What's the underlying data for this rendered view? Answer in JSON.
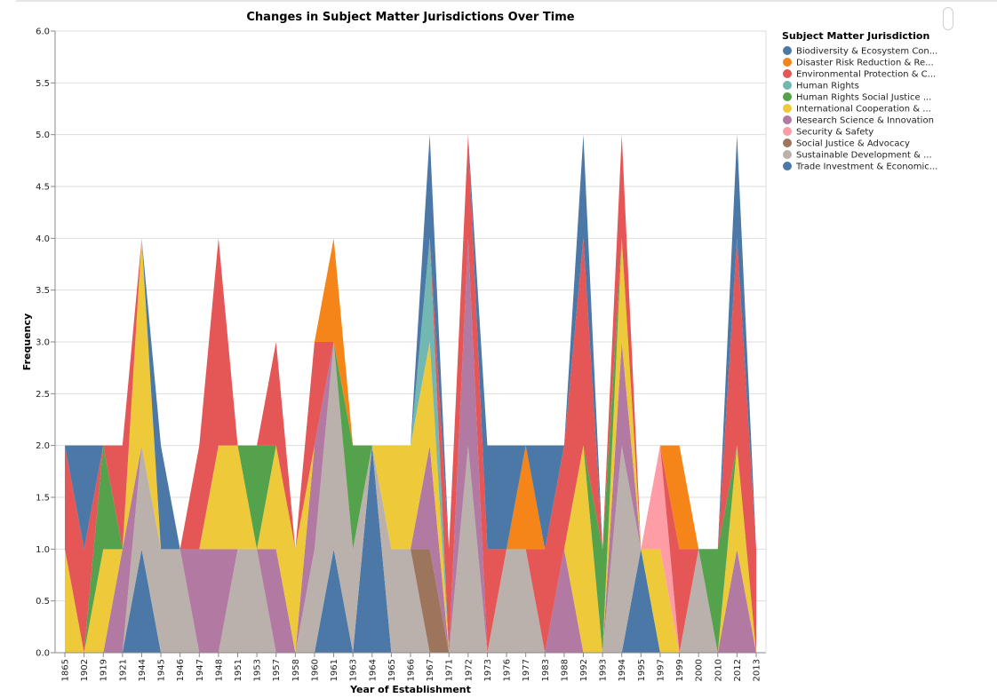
{
  "chart_data": {
    "type": "area",
    "stacked": true,
    "title": "Changes in Subject Matter Jurisdictions Over Time",
    "xlabel": "Year of Establishment",
    "ylabel": "Frequency",
    "ylim": [
      0,
      6
    ],
    "yticks": [
      "0.0",
      "0.5",
      "1.0",
      "1.5",
      "2.0",
      "2.5",
      "3.0",
      "3.5",
      "4.0",
      "4.5",
      "5.0",
      "5.5",
      "6.0"
    ],
    "grid": true,
    "legend_title": "Subject Matter Jurisdiction",
    "legend_position": "right",
    "categories": [
      "1865",
      "1902",
      "1919",
      "1921",
      "1944",
      "1945",
      "1946",
      "1947",
      "1948",
      "1951",
      "1953",
      "1957",
      "1958",
      "1960",
      "1961",
      "1963",
      "1964",
      "1965",
      "1966",
      "1967",
      "1971",
      "1972",
      "1973",
      "1976",
      "1977",
      "1983",
      "1988",
      "1992",
      "1993",
      "1994",
      "1995",
      "1997",
      "1999",
      "2000",
      "2010",
      "2012",
      "2013"
    ],
    "series": [
      {
        "name": "Biodiversity & Ecosystem Con...",
        "color": "#4c78a8",
        "values": [
          0,
          0,
          0,
          0,
          1,
          0,
          0,
          0,
          0,
          0,
          0,
          0,
          0,
          0,
          1,
          0,
          2,
          0,
          0,
          0,
          0,
          0,
          0,
          0,
          0,
          0,
          0,
          0,
          0,
          0,
          1,
          0,
          0,
          0,
          0,
          0,
          0
        ]
      },
      {
        "name": "Sustainable Development & ...",
        "color": "#bab0ac",
        "values": [
          0,
          0,
          0,
          0,
          1,
          1,
          1,
          0,
          0,
          1,
          1,
          0,
          0,
          1,
          2,
          1,
          0,
          1,
          1,
          0,
          0,
          2,
          0,
          1,
          1,
          0,
          0,
          0,
          0,
          2,
          0,
          0,
          0,
          1,
          0,
          0,
          0
        ]
      },
      {
        "name": "Social Justice & Advocacy",
        "color": "#9d755d",
        "values": [
          0,
          0,
          0,
          0,
          0,
          0,
          0,
          0,
          0,
          0,
          0,
          0,
          0,
          0,
          0,
          0,
          0,
          0,
          0,
          1,
          0,
          0,
          0,
          0,
          0,
          0,
          0,
          0,
          0,
          0,
          0,
          0,
          0,
          0,
          0,
          0,
          0
        ]
      },
      {
        "name": "Research Science & Innovation",
        "color": "#b279a2",
        "values": [
          0,
          0,
          0,
          1,
          0,
          0,
          0,
          1,
          1,
          0,
          0,
          1,
          0,
          1,
          0,
          0,
          0,
          0,
          0,
          1,
          0,
          2,
          0,
          0,
          0,
          0,
          1,
          0,
          0,
          1,
          0,
          0,
          0,
          0,
          0,
          1,
          0
        ]
      },
      {
        "name": "International Cooperation & ...",
        "color": "#eeca3b",
        "values": [
          1,
          0,
          1,
          0,
          2,
          0,
          0,
          0,
          1,
          1,
          0,
          1,
          1,
          0,
          0,
          0,
          0,
          1,
          1,
          1,
          0,
          0,
          0,
          0,
          0,
          0,
          0,
          2,
          0,
          1,
          0,
          1,
          0,
          0,
          0,
          1,
          0
        ]
      },
      {
        "name": "Security & Safety",
        "color": "#ff9da6",
        "values": [
          0,
          0,
          0,
          0,
          0,
          0,
          0,
          0,
          0,
          0,
          0,
          0,
          0,
          0,
          0,
          0,
          0,
          0,
          0,
          0,
          0,
          0,
          0,
          0,
          0,
          0,
          0,
          0,
          0,
          0,
          0,
          1,
          0,
          0,
          0,
          0,
          0
        ]
      },
      {
        "name": "Human Rights Social Justice ...",
        "color": "#54a24b",
        "values": [
          0,
          0,
          1,
          0,
          0,
          0,
          0,
          0,
          0,
          0,
          1,
          0,
          0,
          0,
          0,
          1,
          0,
          0,
          0,
          0,
          0,
          0,
          0,
          0,
          0,
          0,
          0,
          0,
          1,
          0,
          0,
          0,
          0,
          0,
          1,
          0,
          0
        ]
      },
      {
        "name": "Human Rights",
        "color": "#72b7b2",
        "values": [
          0,
          0,
          0,
          0,
          0,
          0,
          0,
          0,
          0,
          0,
          0,
          0,
          0,
          0,
          0,
          0,
          0,
          0,
          0,
          1,
          0,
          0,
          0,
          0,
          0,
          0,
          0,
          0,
          0,
          0,
          0,
          0,
          0,
          0,
          0,
          0,
          0
        ]
      },
      {
        "name": "Environmental Protection & C...",
        "color": "#e45756",
        "values": [
          1,
          1,
          0,
          1,
          0,
          0,
          0,
          1,
          2,
          0,
          0,
          1,
          0,
          1,
          0,
          0,
          0,
          0,
          0,
          0,
          1,
          1,
          1,
          0,
          0,
          1,
          1,
          2,
          0,
          1,
          0,
          0,
          1,
          0,
          0,
          2,
          1
        ]
      },
      {
        "name": "Disaster Risk Reduction & Re...",
        "color": "#f58518",
        "values": [
          0,
          0,
          0,
          0,
          0,
          0,
          0,
          0,
          0,
          0,
          0,
          0,
          0,
          0,
          1,
          0,
          0,
          0,
          0,
          0,
          0,
          0,
          0,
          0,
          1,
          0,
          0,
          0,
          0,
          0,
          0,
          0,
          1,
          0,
          0,
          0,
          0
        ]
      },
      {
        "name": "Trade Investment & Economic...",
        "color": "#4c78a8",
        "values": [
          0,
          1,
          0,
          0,
          0,
          1,
          0,
          0,
          0,
          0,
          0,
          0,
          0,
          0,
          0,
          0,
          0,
          0,
          0,
          1,
          0,
          0,
          1,
          1,
          0,
          1,
          0,
          1,
          0,
          0,
          0,
          0,
          0,
          0,
          0,
          1,
          0
        ]
      }
    ],
    "legend": [
      {
        "label": "Biodiversity & Ecosystem Con...",
        "color": "#4c78a8"
      },
      {
        "label": "Disaster Risk Reduction & Re...",
        "color": "#f58518"
      },
      {
        "label": "Environmental Protection & C...",
        "color": "#e45756"
      },
      {
        "label": "Human Rights",
        "color": "#72b7b2"
      },
      {
        "label": "Human Rights Social Justice ...",
        "color": "#54a24b"
      },
      {
        "label": "International Cooperation & ...",
        "color": "#eeca3b"
      },
      {
        "label": "Research Science & Innovation",
        "color": "#b279a2"
      },
      {
        "label": "Security & Safety",
        "color": "#ff9da6"
      },
      {
        "label": "Social Justice & Advocacy",
        "color": "#9d755d"
      },
      {
        "label": "Sustainable Development & ...",
        "color": "#bab0ac"
      },
      {
        "label": "Trade Investment & Economic...",
        "color": "#4c78a8"
      }
    ]
  }
}
